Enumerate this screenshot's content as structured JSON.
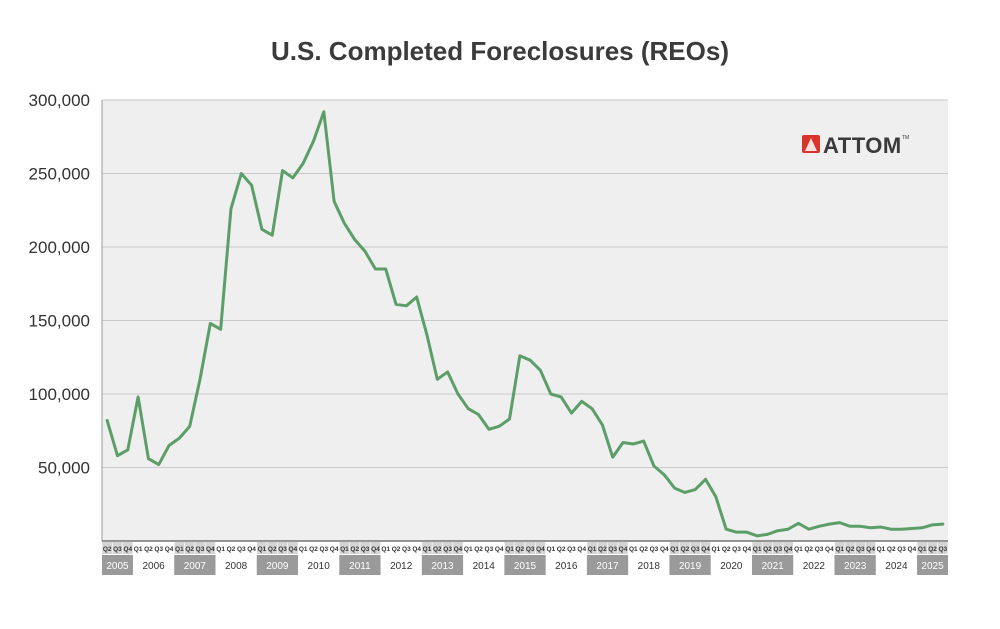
{
  "chart_data": {
    "type": "line",
    "title": "U.S. Completed Foreclosures (REOs)",
    "xlabel": "",
    "ylabel": "",
    "ylim": [
      0,
      300000
    ],
    "yticks": [
      50000,
      100000,
      150000,
      200000,
      250000,
      300000
    ],
    "ytick_labels": [
      "50,000",
      "100,000",
      "150,000",
      "200,000",
      "250,000",
      "300,000"
    ],
    "grid": true,
    "series_color": "#5b9e67",
    "shade_color": "#9a9a9a",
    "plot_bg": "#efefef",
    "years": [
      {
        "label": "2005",
        "quarters": [
          "Q2",
          "Q3",
          "Q4"
        ],
        "shaded": true
      },
      {
        "label": "2006",
        "quarters": [
          "Q1",
          "Q2",
          "Q3",
          "Q4"
        ],
        "shaded": false
      },
      {
        "label": "2007",
        "quarters": [
          "Q1",
          "Q2",
          "Q3",
          "Q4"
        ],
        "shaded": true
      },
      {
        "label": "2008",
        "quarters": [
          "Q1",
          "Q2",
          "Q3",
          "Q4"
        ],
        "shaded": false
      },
      {
        "label": "2009",
        "quarters": [
          "Q1",
          "Q2",
          "Q3",
          "Q4"
        ],
        "shaded": true
      },
      {
        "label": "2010",
        "quarters": [
          "Q1",
          "Q2",
          "Q3",
          "Q4"
        ],
        "shaded": false
      },
      {
        "label": "2011",
        "quarters": [
          "Q1",
          "Q2",
          "Q3",
          "Q4"
        ],
        "shaded": true
      },
      {
        "label": "2012",
        "quarters": [
          "Q1",
          "Q2",
          "Q3",
          "Q4"
        ],
        "shaded": false
      },
      {
        "label": "2013",
        "quarters": [
          "Q1",
          "Q2",
          "Q3",
          "Q4"
        ],
        "shaded": true
      },
      {
        "label": "2014",
        "quarters": [
          "Q1",
          "Q2",
          "Q3",
          "Q4"
        ],
        "shaded": false
      },
      {
        "label": "2015",
        "quarters": [
          "Q1",
          "Q2",
          "Q3",
          "Q4"
        ],
        "shaded": true
      },
      {
        "label": "2016",
        "quarters": [
          "Q1",
          "Q2",
          "Q3",
          "Q4"
        ],
        "shaded": false
      },
      {
        "label": "2017",
        "quarters": [
          "Q1",
          "Q2",
          "Q3",
          "Q4"
        ],
        "shaded": true
      },
      {
        "label": "2018",
        "quarters": [
          "Q1",
          "Q2",
          "Q3",
          "Q4"
        ],
        "shaded": false
      },
      {
        "label": "2019",
        "quarters": [
          "Q1",
          "Q2",
          "Q3",
          "Q4"
        ],
        "shaded": true
      },
      {
        "label": "2020",
        "quarters": [
          "Q1",
          "Q2",
          "Q3",
          "Q4"
        ],
        "shaded": false
      },
      {
        "label": "2021",
        "quarters": [
          "Q1",
          "Q2",
          "Q3",
          "Q4"
        ],
        "shaded": true
      },
      {
        "label": "2022",
        "quarters": [
          "Q1",
          "Q2",
          "Q3",
          "Q4"
        ],
        "shaded": false
      },
      {
        "label": "2023",
        "quarters": [
          "Q1",
          "Q2",
          "Q3",
          "Q4"
        ],
        "shaded": true
      },
      {
        "label": "2024",
        "quarters": [
          "Q1",
          "Q2",
          "Q3",
          "Q4"
        ],
        "shaded": false
      },
      {
        "label": "2025",
        "quarters": [
          "Q1",
          "Q2",
          "Q3"
        ],
        "shaded": true
      }
    ],
    "series": [
      {
        "name": "Completed Foreclosures (REOs)",
        "values": [
          82000,
          58000,
          62000,
          98000,
          56000,
          52000,
          65000,
          70000,
          78000,
          110000,
          148000,
          144000,
          226000,
          250000,
          242000,
          212000,
          208000,
          252000,
          247000,
          257000,
          272000,
          292000,
          231000,
          216000,
          205000,
          197000,
          185000,
          185000,
          161000,
          160000,
          166000,
          140000,
          110000,
          115000,
          100000,
          90000,
          86000,
          76000,
          78000,
          83000,
          126000,
          123000,
          116000,
          100000,
          98000,
          87000,
          95000,
          90000,
          79000,
          57000,
          67000,
          66000,
          68000,
          51000,
          45000,
          36000,
          33000,
          35000,
          42000,
          30000,
          8000,
          6000,
          6000,
          3500,
          4500,
          7000,
          8000,
          12000,
          8000,
          10000,
          11500,
          12500,
          10000,
          10000,
          9000,
          9500,
          8000,
          8000,
          8500,
          9000,
          11000,
          11500
        ]
      }
    ]
  },
  "logo": {
    "text": "ATTOM",
    "tm": "TM",
    "brand_color": "#d9342b"
  }
}
